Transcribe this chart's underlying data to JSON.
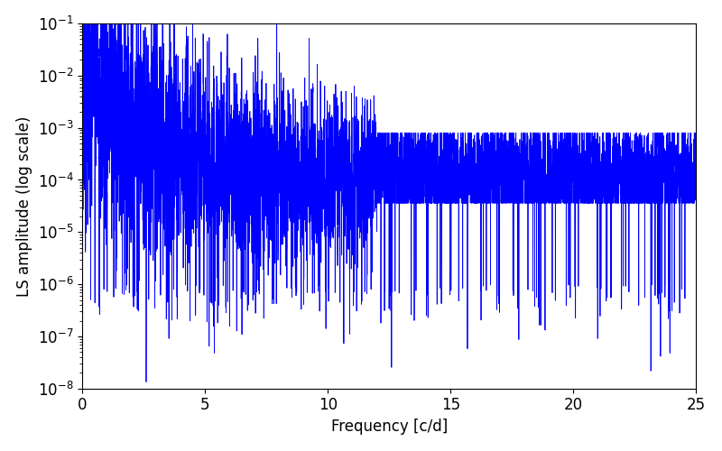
{
  "xlabel": "Frequency [c/d]",
  "ylabel": "LS amplitude (log scale)",
  "xlim": [
    0,
    25
  ],
  "ylim": [
    1e-08,
    0.1
  ],
  "line_color": "#0000FF",
  "line_width": 0.6,
  "background_color": "#FFFFFF",
  "figsize": [
    8.0,
    5.0
  ],
  "dpi": 100,
  "seed": 7,
  "n_points": 5000,
  "freq_max": 25.0
}
